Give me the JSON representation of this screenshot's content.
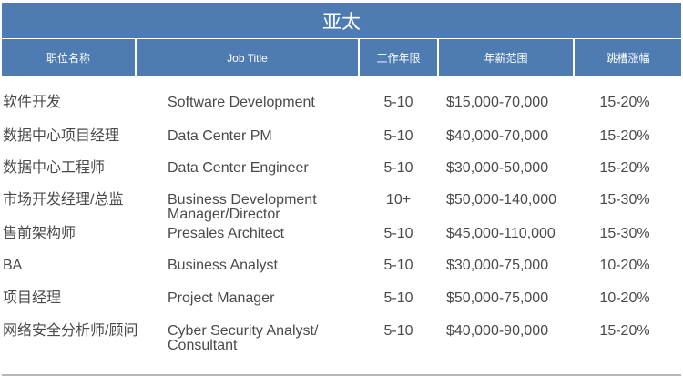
{
  "title": "亚太",
  "colors": {
    "header_bg": "#4e7cb2",
    "header_text": "#ffffff",
    "body_text": "#4a4a4a"
  },
  "columns": [
    "职位名称",
    "Job Title",
    "工作年限",
    "年薪范围",
    "跳槽涨幅"
  ],
  "rows": [
    [
      "软件开发",
      "Software Development",
      "5-10",
      "$15,000-70,000",
      "15-20%"
    ],
    [
      "数据中心项目经理",
      "Data Center PM",
      "5-10",
      "$40,000-70,000",
      "15-20%"
    ],
    [
      "数据中心工程师",
      "Data Center Engineer",
      "5-10",
      "$30,000-50,000",
      "15-20%"
    ],
    [
      "市场开发经理/总监",
      "Business Development Manager/Director",
      "10+",
      "$50,000-140,000",
      "15-30%"
    ],
    [
      "售前架构师",
      "Presales Architect",
      "5-10",
      "$45,000-110,000",
      "15-30%"
    ],
    [
      "BA",
      "Business Analyst",
      "5-10",
      "$30,000-75,000",
      "10-20%"
    ],
    [
      "项目经理",
      "Project Manager",
      "5-10",
      "$50,000-75,000",
      "10-20%"
    ],
    [
      "网络安全分析师/顾问",
      "Cyber Security Analyst/ Consultant",
      "5-10",
      "$40,000-90,000",
      "15-20%"
    ]
  ]
}
